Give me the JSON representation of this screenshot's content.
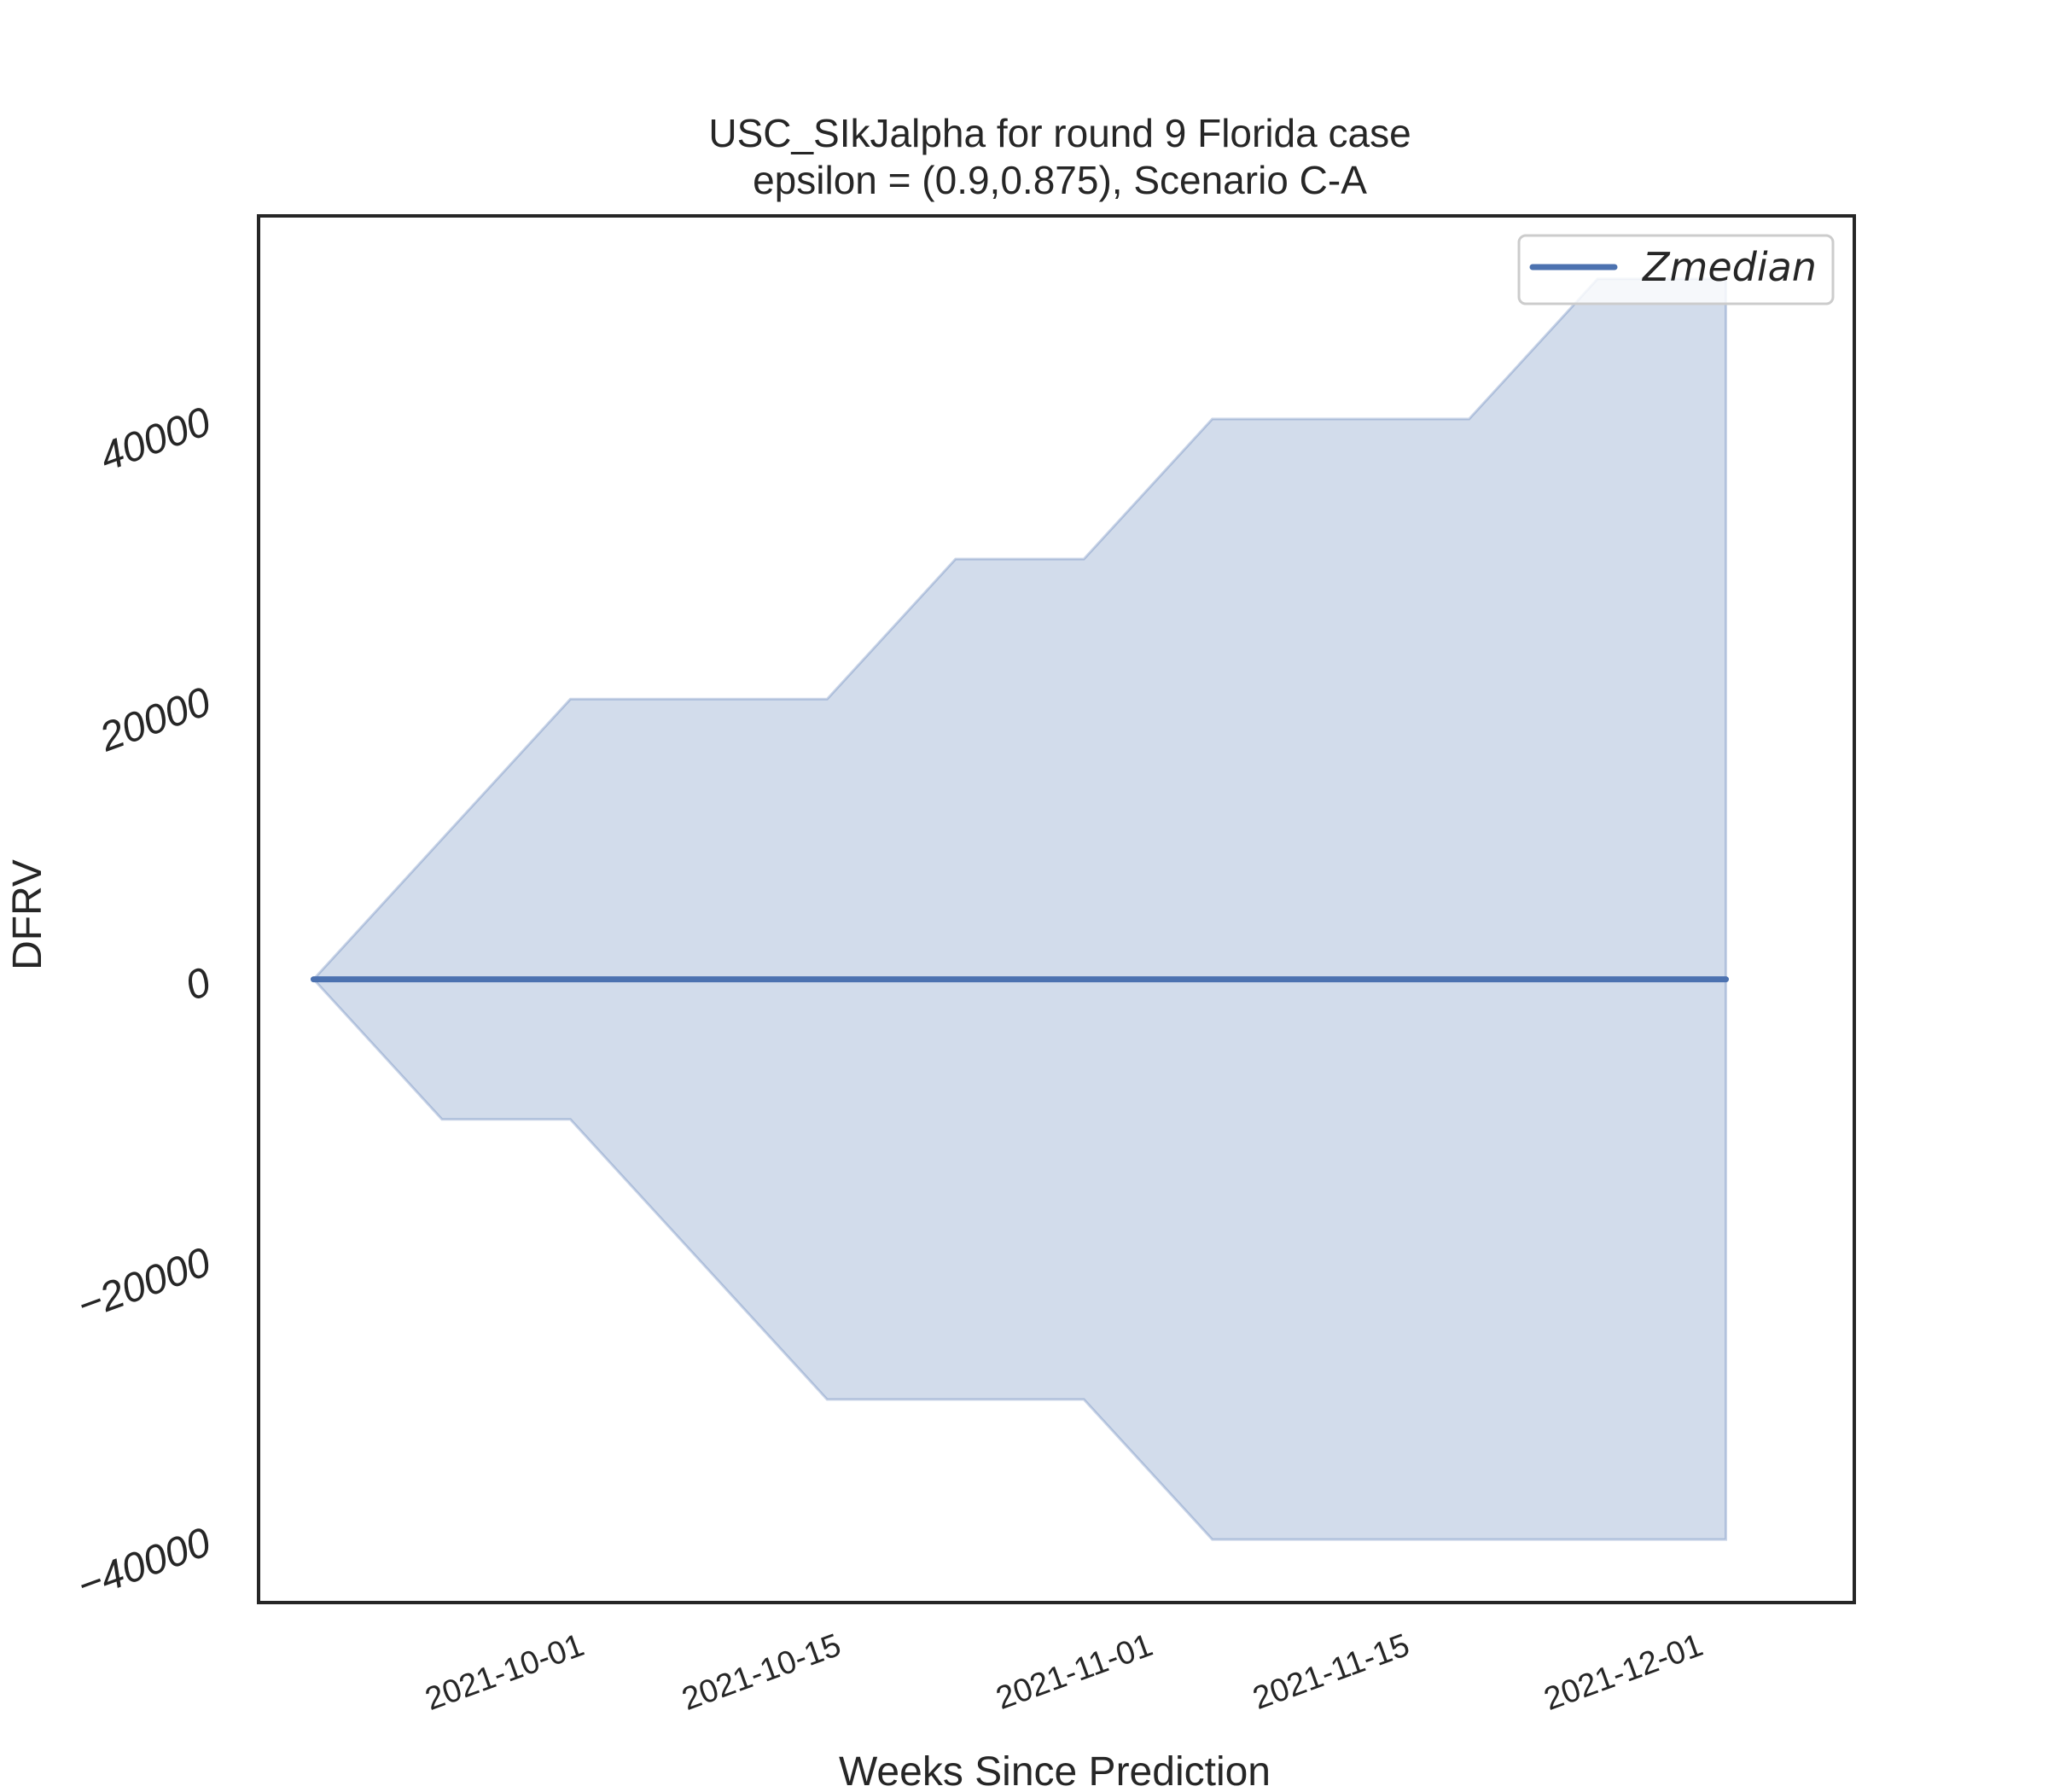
{
  "chart_data": {
    "type": "area",
    "title_line1": "USC_SIkJalpha for round 9 Florida  case",
    "title_line2": "epsilon = (0.9,0.875), Scenario C-A",
    "xlabel": "Weeks Since Prediction",
    "ylabel": "DFRV",
    "x": [
      "2021-09-18",
      "2021-09-25",
      "2021-10-02",
      "2021-10-09",
      "2021-10-16",
      "2021-10-23",
      "2021-10-30",
      "2021-11-06",
      "2021-11-13",
      "2021-11-20",
      "2021-11-27",
      "2021-12-04"
    ],
    "series": [
      {
        "name": "Zmedian",
        "values": [
          0,
          0,
          0,
          0,
          0,
          0,
          0,
          0,
          0,
          0,
          0,
          0
        ],
        "color": "#4c72b0"
      }
    ],
    "band": {
      "upper": [
        0,
        10000,
        20000,
        20000,
        20000,
        30000,
        30000,
        40000,
        40000,
        40000,
        50000,
        50000
      ],
      "lower": [
        0,
        -10000,
        -10000,
        -20000,
        -30000,
        -30000,
        -30000,
        -40000,
        -40000,
        -40000,
        -40000,
        -40000
      ],
      "color": "#4c72b0",
      "opacity": 0.25
    },
    "xticks": [
      "2021-10-01",
      "2021-10-15",
      "2021-11-01",
      "2021-11-15",
      "2021-12-01"
    ],
    "yticks": [
      -40000,
      -20000,
      0,
      20000,
      40000
    ],
    "ytick_labels": [
      "−40000",
      "−20000",
      "0",
      "20000",
      "40000"
    ],
    "xlim": [
      "2021-09-15",
      "2021-12-11"
    ],
    "ylim": [
      -44500,
      54500
    ],
    "grid": false,
    "legend": "top-right"
  }
}
